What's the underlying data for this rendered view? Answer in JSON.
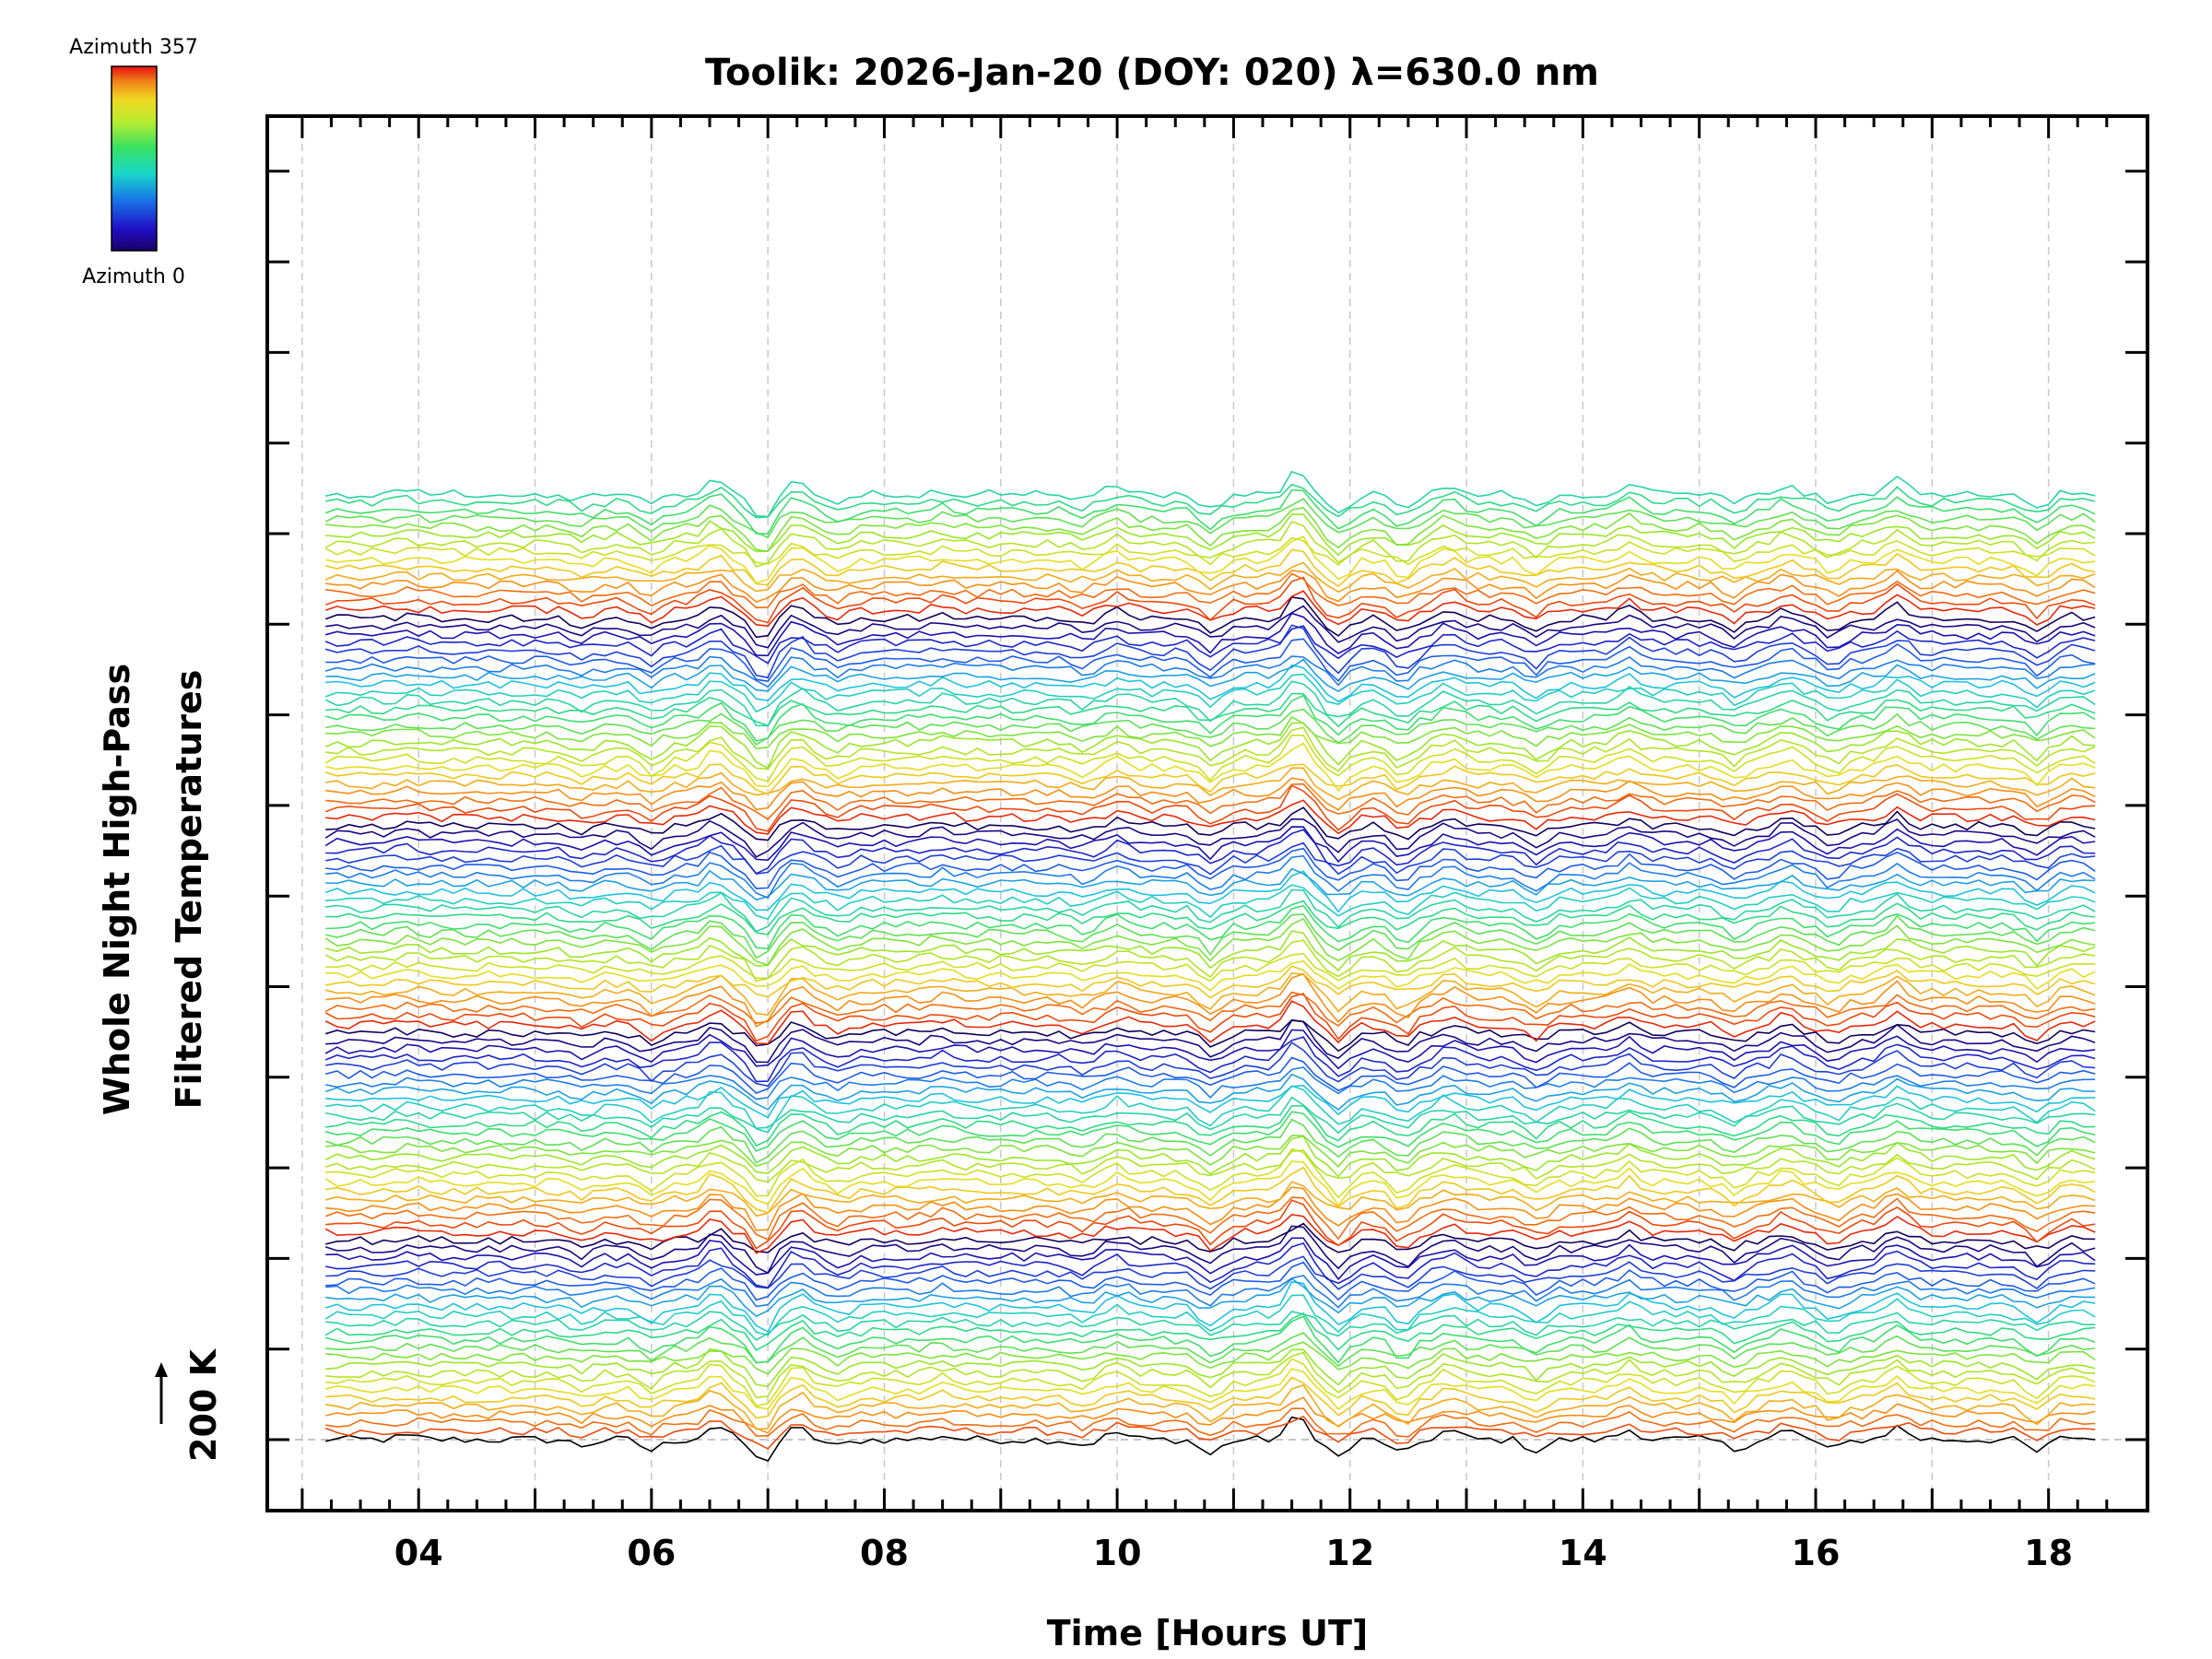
{
  "chart_data": {
    "type": "line",
    "title": "Toolik: 2026-Jan-20 (DOY: 020) λ=630.0 nm",
    "xlabel": "Time [Hours UT]",
    "ylabel_line1": "Whole Night High-Pass",
    "ylabel_line2": "Filtered Temperatures",
    "scale_marker": "200 K",
    "xlim": [
      2.7,
      18.85
    ],
    "x_ticks": [
      4,
      6,
      8,
      10,
      12,
      14,
      16,
      18
    ],
    "x_tick_labels": [
      "04",
      "06",
      "08",
      "10",
      "12",
      "14",
      "16",
      "18"
    ],
    "x_start": 3.2,
    "x_end": 18.4,
    "x_step": 0.1,
    "series_count": 115,
    "offset_per_series_K": 18,
    "colorbar": {
      "top_label": "Azimuth 357",
      "bottom_label": "Azimuth 0",
      "range": [
        0,
        357
      ],
      "colormap": "rainbow"
    },
    "azimuth_cycle_series": 25,
    "common_features": [
      {
        "time": 3.9,
        "amplitude": 6
      },
      {
        "time": 5.4,
        "amplitude": -12
      },
      {
        "time": 6.0,
        "amplitude": -22
      },
      {
        "time": 6.55,
        "amplitude": 28
      },
      {
        "time": 6.95,
        "amplitude": -45
      },
      {
        "time": 7.25,
        "amplitude": 22
      },
      {
        "time": 7.6,
        "amplitude": -14
      },
      {
        "time": 8.5,
        "amplitude": 8
      },
      {
        "time": 9.7,
        "amplitude": -10
      },
      {
        "time": 10.0,
        "amplitude": 14
      },
      {
        "time": 10.8,
        "amplitude": -30
      },
      {
        "time": 11.55,
        "amplitude": 45
      },
      {
        "time": 11.9,
        "amplitude": -35
      },
      {
        "time": 12.45,
        "amplitude": -30
      },
      {
        "time": 12.85,
        "amplitude": 18
      },
      {
        "time": 13.6,
        "amplitude": -22
      },
      {
        "time": 14.4,
        "amplitude": 20
      },
      {
        "time": 15.3,
        "amplitude": -20
      },
      {
        "time": 15.75,
        "amplitude": 18
      },
      {
        "time": 16.15,
        "amplitude": -20
      },
      {
        "time": 16.7,
        "amplitude": 25
      },
      {
        "time": 17.9,
        "amplitude": -25
      },
      {
        "time": 18.2,
        "amplitude": 6
      }
    ]
  }
}
